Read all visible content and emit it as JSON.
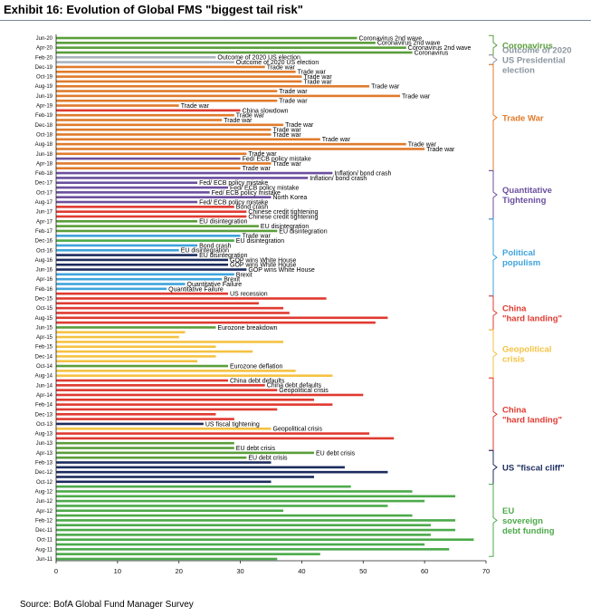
{
  "title": "Exhibit 16: Evolution of Global FMS \"biggest tail risk\"",
  "source": "Source: BofA Global Fund Manager Survey",
  "colors": {
    "Coronavirus": "#5a9e3a",
    "Election": "#a9b4bf",
    "Trade War": "#e07b2c",
    "QT": "#6b4f9e",
    "Populism": "#3fa3dc",
    "China": "#e03a30",
    "Geopolitical": "#f5c242",
    "Fiscal": "#1d2c5e",
    "EU Debt": "#4caa4a"
  },
  "chart_data": {
    "type": "bar",
    "orientation": "horizontal",
    "title": "Evolution of Global FMS \"biggest tail risk\"",
    "xlim": [
      0,
      70
    ],
    "xticks": [
      0,
      10,
      20,
      30,
      40,
      50,
      60,
      70
    ],
    "bars": [
      {
        "date": "Jun-20",
        "value": 49,
        "group": "Coronavirus",
        "label": "Coronavirus 2nd wave"
      },
      {
        "date": "",
        "value": 52,
        "group": "Coronavirus",
        "label": "Coronavirus 2nd wave"
      },
      {
        "date": "Apr-20",
        "value": 57,
        "group": "Coronavirus",
        "label": "Coronavirus 2nd wave"
      },
      {
        "date": "",
        "value": 58,
        "group": "Coronavirus",
        "label": "Coronavirus"
      },
      {
        "date": "Feb-20",
        "value": 26,
        "group": "Election",
        "label": "Outcome of 2020 US election"
      },
      {
        "date": "",
        "value": 29,
        "group": "Election",
        "label": "Outcome of 2020 US election"
      },
      {
        "date": "Dec-19",
        "value": 34,
        "group": "Trade War",
        "label": "Trade war"
      },
      {
        "date": "",
        "value": 39,
        "group": "Trade War",
        "label": "Trade war"
      },
      {
        "date": "Oct-19",
        "value": 40,
        "group": "Trade War",
        "label": "Trade war"
      },
      {
        "date": "",
        "value": 40,
        "group": "Trade War",
        "label": "Trade war"
      },
      {
        "date": "Aug-19",
        "value": 51,
        "group": "Trade War",
        "label": "Trade war"
      },
      {
        "date": "",
        "value": 36,
        "group": "Trade War",
        "label": "Trade war"
      },
      {
        "date": "Jun-19",
        "value": 56,
        "group": "Trade War",
        "label": "Trade war"
      },
      {
        "date": "",
        "value": 36,
        "group": "Trade War",
        "label": "Trade war"
      },
      {
        "date": "Apr-19",
        "value": 20,
        "group": "Trade War",
        "label": "Trade war"
      },
      {
        "date": "",
        "value": 30,
        "group": "China",
        "label": "China slowdown"
      },
      {
        "date": "Feb-19",
        "value": 29,
        "group": "Trade War",
        "label": "Trade war"
      },
      {
        "date": "",
        "value": 27,
        "group": "Trade War",
        "label": "Trade war"
      },
      {
        "date": "Dec-18",
        "value": 37,
        "group": "Trade War",
        "label": "Trade war"
      },
      {
        "date": "",
        "value": 35,
        "group": "Trade War",
        "label": "Trade war"
      },
      {
        "date": "Oct-18",
        "value": 35,
        "group": "Trade War",
        "label": "Trade war"
      },
      {
        "date": "",
        "value": 43,
        "group": "Trade War",
        "label": "Trade war"
      },
      {
        "date": "Aug-18",
        "value": 57,
        "group": "Trade War",
        "label": "Trade war"
      },
      {
        "date": "",
        "value": 60,
        "group": "Trade War",
        "label": "Trade war"
      },
      {
        "date": "Jun-18",
        "value": 31,
        "group": "Trade War",
        "label": "Trade war"
      },
      {
        "date": "",
        "value": 30,
        "group": "QT",
        "label": "Fed/ ECB policy mistake"
      },
      {
        "date": "Apr-18",
        "value": 35,
        "group": "Trade War",
        "label": "Trade war"
      },
      {
        "date": "",
        "value": 30,
        "group": "Trade War",
        "label": "Trade war"
      },
      {
        "date": "Feb-18",
        "value": 45,
        "group": "QT",
        "label": "Inflation/ bond crash"
      },
      {
        "date": "",
        "value": 41,
        "group": "QT",
        "label": "Inflation/ bond crash"
      },
      {
        "date": "Dec-17",
        "value": 23,
        "group": "QT",
        "label": "Fed/ ECB policy mistake"
      },
      {
        "date": "",
        "value": 28,
        "group": "QT",
        "label": "Fed/ ECB policy mistake"
      },
      {
        "date": "Oct-17",
        "value": 25,
        "group": "QT",
        "label": "Fed/ ECB policy mistake"
      },
      {
        "date": "",
        "value": 35,
        "group": "QT",
        "label": "North Korea"
      },
      {
        "date": "Aug-17",
        "value": 23,
        "group": "QT",
        "label": "Fed/ ECB policy mistake"
      },
      {
        "date": "",
        "value": 29,
        "group": "China",
        "label": "Bond crash"
      },
      {
        "date": "Jun-17",
        "value": 31,
        "group": "China",
        "label": "Chinese credit tightening"
      },
      {
        "date": "",
        "value": 31,
        "group": "China",
        "label": "Chinese credit tightening"
      },
      {
        "date": "Apr-17",
        "value": 23,
        "group": "Coronavirus",
        "label": "EU disintegration"
      },
      {
        "date": "",
        "value": 33,
        "group": "Coronavirus",
        "label": "EU disintegration"
      },
      {
        "date": "Feb-17",
        "value": 36,
        "group": "Coronavirus",
        "label": "EU disintegration"
      },
      {
        "date": "",
        "value": 30,
        "group": "Populism",
        "label": "Trade war"
      },
      {
        "date": "Dec-16",
        "value": 29,
        "group": "EU Debt",
        "label": "EU disintegration"
      },
      {
        "date": "",
        "value": 23,
        "group": "Populism",
        "label": "Bond crash"
      },
      {
        "date": "Oct-16",
        "value": 20,
        "group": "Populism",
        "label": "EU disintegration"
      },
      {
        "date": "",
        "value": 23,
        "group": "Fiscal",
        "label": "EU disintegration"
      },
      {
        "date": "Aug-16",
        "value": 28,
        "group": "Fiscal",
        "label": "GOP wins White House"
      },
      {
        "date": "",
        "value": 28,
        "group": "Fiscal",
        "label": "GOP wins White House"
      },
      {
        "date": "Jun-16",
        "value": 31,
        "group": "Fiscal",
        "label": "GOP wins White House"
      },
      {
        "date": "",
        "value": 29,
        "group": "Populism",
        "label": "Brexit"
      },
      {
        "date": "Apr-16",
        "value": 27,
        "group": "Populism",
        "label": "Brexit"
      },
      {
        "date": "",
        "value": 21,
        "group": "Populism",
        "label": "Quantitative Failure"
      },
      {
        "date": "Feb-16",
        "value": 18,
        "group": "Populism",
        "label": "Quantitative Failure"
      },
      {
        "date": "",
        "value": 28,
        "group": "China",
        "label": "US recession"
      },
      {
        "date": "Dec-15",
        "value": 44,
        "group": "China",
        "label": ""
      },
      {
        "date": "",
        "value": 33,
        "group": "China",
        "label": ""
      },
      {
        "date": "Oct-15",
        "value": 37,
        "group": "China",
        "label": ""
      },
      {
        "date": "",
        "value": 38,
        "group": "China",
        "label": ""
      },
      {
        "date": "Aug-15",
        "value": 54,
        "group": "China",
        "label": ""
      },
      {
        "date": "",
        "value": 52,
        "group": "China",
        "label": ""
      },
      {
        "date": "Jun-15",
        "value": 26,
        "group": "Coronavirus",
        "label": "Eurozone breakdown"
      },
      {
        "date": "",
        "value": 21,
        "group": "Geopolitical",
        "label": ""
      },
      {
        "date": "Apr-15",
        "value": 20,
        "group": "Geopolitical",
        "label": ""
      },
      {
        "date": "",
        "value": 37,
        "group": "Geopolitical",
        "label": ""
      },
      {
        "date": "Feb-15",
        "value": 26,
        "group": "Geopolitical",
        "label": ""
      },
      {
        "date": "",
        "value": 32,
        "group": "Geopolitical",
        "label": ""
      },
      {
        "date": "Dec-14",
        "value": 26,
        "group": "Geopolitical",
        "label": ""
      },
      {
        "date": "",
        "value": 23,
        "group": "Geopolitical",
        "label": ""
      },
      {
        "date": "Oct-14",
        "value": 28,
        "group": "Coronavirus",
        "label": "Eurozone deflation"
      },
      {
        "date": "",
        "value": 39,
        "group": "Geopolitical",
        "label": ""
      },
      {
        "date": "Aug-14",
        "value": 45,
        "group": "Geopolitical",
        "label": ""
      },
      {
        "date": "",
        "value": 28,
        "group": "China",
        "label": "China debt defaults"
      },
      {
        "date": "Jun-14",
        "value": 34,
        "group": "China",
        "label": "China debt defaults"
      },
      {
        "date": "",
        "value": 36,
        "group": "China",
        "label": "Geopolitical crisis"
      },
      {
        "date": "Apr-14",
        "value": 50,
        "group": "China",
        "label": ""
      },
      {
        "date": "",
        "value": 42,
        "group": "China",
        "label": ""
      },
      {
        "date": "Feb-14",
        "value": 45,
        "group": "China",
        "label": ""
      },
      {
        "date": "",
        "value": 36,
        "group": "China",
        "label": ""
      },
      {
        "date": "Dec-13",
        "value": 26,
        "group": "China",
        "label": ""
      },
      {
        "date": "",
        "value": 29,
        "group": "China",
        "label": ""
      },
      {
        "date": "Oct-13",
        "value": 24,
        "group": "Fiscal",
        "label": "US fiscal tightening"
      },
      {
        "date": "",
        "value": 35,
        "group": "Geopolitical",
        "label": "Geopolitical crisis"
      },
      {
        "date": "Aug-13",
        "value": 51,
        "group": "China",
        "label": ""
      },
      {
        "date": "",
        "value": 55,
        "group": "China",
        "label": ""
      },
      {
        "date": "Jun-13",
        "value": 29,
        "group": "Coronavirus",
        "label": ""
      },
      {
        "date": "",
        "value": 29,
        "group": "Coronavirus",
        "label": "EU debt crisis"
      },
      {
        "date": "Apr-13",
        "value": 42,
        "group": "Coronavirus",
        "label": "EU debt crisis"
      },
      {
        "date": "",
        "value": 31,
        "group": "Coronavirus",
        "label": "EU debt crisis"
      },
      {
        "date": "Feb-13",
        "value": 35,
        "group": "Fiscal",
        "label": ""
      },
      {
        "date": "",
        "value": 47,
        "group": "Fiscal",
        "label": ""
      },
      {
        "date": "Dec-12",
        "value": 54,
        "group": "Fiscal",
        "label": ""
      },
      {
        "date": "",
        "value": 42,
        "group": "Fiscal",
        "label": ""
      },
      {
        "date": "Oct-12",
        "value": 35,
        "group": "Fiscal",
        "label": ""
      },
      {
        "date": "",
        "value": 48,
        "group": "EU Debt",
        "label": ""
      },
      {
        "date": "Aug-12",
        "value": 58,
        "group": "EU Debt",
        "label": ""
      },
      {
        "date": "",
        "value": 65,
        "group": "EU Debt",
        "label": ""
      },
      {
        "date": "Jun-12",
        "value": 60,
        "group": "EU Debt",
        "label": ""
      },
      {
        "date": "",
        "value": 54,
        "group": "EU Debt",
        "label": ""
      },
      {
        "date": "Apr-12",
        "value": 37,
        "group": "EU Debt",
        "label": ""
      },
      {
        "date": "",
        "value": 58,
        "group": "EU Debt",
        "label": ""
      },
      {
        "date": "Feb-12",
        "value": 65,
        "group": "EU Debt",
        "label": ""
      },
      {
        "date": "",
        "value": 61,
        "group": "EU Debt",
        "label": ""
      },
      {
        "date": "Dec-11",
        "value": 65,
        "group": "EU Debt",
        "label": ""
      },
      {
        "date": "",
        "value": 61,
        "group": "EU Debt",
        "label": ""
      },
      {
        "date": "Oct-11",
        "value": 68,
        "group": "EU Debt",
        "label": ""
      },
      {
        "date": "",
        "value": 60,
        "group": "EU Debt",
        "label": ""
      },
      {
        "date": "Aug-11",
        "value": 64,
        "group": "EU Debt",
        "label": ""
      },
      {
        "date": "",
        "value": 43,
        "group": "EU Debt",
        "label": ""
      },
      {
        "date": "Jun-11",
        "value": 36,
        "group": "EU Debt",
        "label": ""
      }
    ],
    "group_labels": [
      {
        "lines": [
          "Coronavirus"
        ],
        "color": "#5a9e3a",
        "from": 0,
        "to": 4
      },
      {
        "lines": [
          "Outcome of 2020",
          "US Presidential",
          "election"
        ],
        "color": "#8b96a0",
        "from": 4,
        "to": 6
      },
      {
        "lines": [
          "Trade War"
        ],
        "color": "#e07b2c",
        "from": 6,
        "to": 28
      },
      {
        "lines": [
          "Quantitative",
          "Tightening"
        ],
        "color": "#6b4f9e",
        "from": 28,
        "to": 38
      },
      {
        "lines": [
          "Political",
          "populism"
        ],
        "color": "#3fa3dc",
        "from": 38,
        "to": 54
      },
      {
        "lines": [
          "China",
          "\"hard landing\""
        ],
        "color": "#e03a30",
        "from": 54,
        "to": 61
      },
      {
        "lines": [
          "Geopolitical",
          "crisis"
        ],
        "color": "#f5c242",
        "from": 61,
        "to": 71
      },
      {
        "lines": [
          "China",
          "\"hard landing\""
        ],
        "color": "#e03a30",
        "from": 71,
        "to": 86
      },
      {
        "lines": [
          "US \"fiscal cliff\""
        ],
        "color": "#1d2c5e",
        "from": 86,
        "to": 93
      },
      {
        "lines": [
          "EU",
          "sovereign",
          "debt funding"
        ],
        "color": "#4caa4a",
        "from": 93,
        "to": 108
      }
    ]
  }
}
